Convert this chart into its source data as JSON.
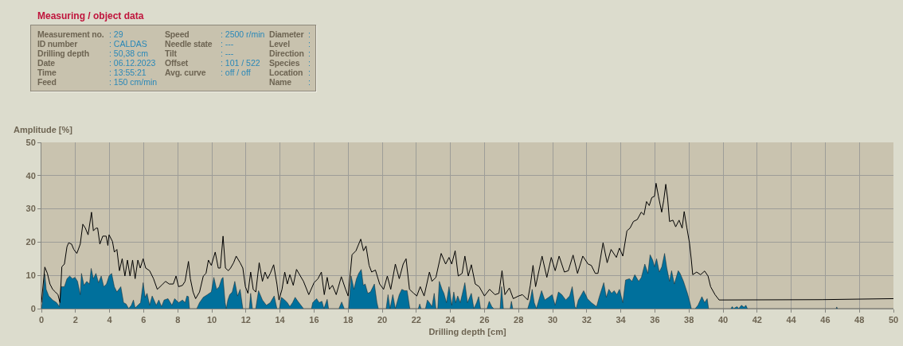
{
  "chart_data": [
    {
      "type": "other",
      "title": "Measuring / object data",
      "annotations": [
        "Measurement no.",
        ": 29",
        "Speed",
        ": 2500 r/min",
        "Diameter",
        ":",
        "ID number",
        ": CALDAS",
        "Needle state",
        ": ---",
        "Level",
        ":",
        "Drilling depth",
        ": 50,38 cm",
        "Tilt",
        ": ---",
        "Direction",
        ":",
        "Date",
        ": 06.12.2023",
        "Offset",
        ": 101 / 522",
        "Species",
        ":",
        "Time",
        ": 13:55:21",
        "Avg. curve",
        ": off / off",
        "Location",
        ":",
        "Feed",
        ": 150 cm/min",
        "Name",
        ":"
      ]
    },
    {
      "type": "line",
      "xlabel": "Drilling depth [cm]",
      "ylabel": "Amplitude [%]",
      "xlim": [
        0,
        50
      ],
      "ylim": [
        0,
        50
      ],
      "xticks": [
        0,
        2,
        4,
        6,
        8,
        10,
        12,
        14,
        16,
        18,
        20,
        22,
        24,
        26,
        28,
        30,
        32,
        34,
        36,
        38,
        40,
        42,
        44,
        46,
        48,
        50
      ],
      "yticks": [
        0,
        10,
        20,
        30,
        40,
        50
      ],
      "grid": true,
      "series": [
        {
          "type": "area",
          "color": "#00709c",
          "x": [
            0,
            0.05,
            0.12,
            0.2,
            0.28,
            0.43,
            0.66,
            0.89,
            1.05,
            1.15,
            1.35,
            1.5,
            1.66,
            1.82,
            1.97,
            2.12,
            2.28,
            2.35,
            2.5,
            2.66,
            2.82,
            2.92,
            3.05,
            3.2,
            3.35,
            3.51,
            3.66,
            3.82,
            3.97,
            4.12,
            4.28,
            4.43,
            4.66,
            4.82,
            4.97,
            5.12,
            5.28,
            5.4,
            5.5,
            5.66,
            5.82,
            5.97,
            6.09,
            6.2,
            6.35,
            6.5,
            6.74,
            6.89,
            7.05,
            7.2,
            7.43,
            7.66,
            7.82,
            8.05,
            8.28,
            8.43,
            8.54,
            8.63,
            8.69,
            9.12,
            9.28,
            9.5,
            9.74,
            9.97,
            10.12,
            10.28,
            10.43,
            10.58,
            10.66,
            10.78,
            10.85,
            10.94,
            11.05,
            11.2,
            11.35,
            11.51,
            11.66,
            11.82,
            12.2,
            12.28,
            12.38,
            12.58,
            12.74,
            12.97,
            13.2,
            13.43,
            13.66,
            13.82,
            13.97,
            14.08,
            14.28,
            14.43,
            14.58,
            14.74,
            14.89,
            15.05,
            15.23,
            15.38,
            15.85,
            15.92,
            16.15,
            16.3,
            16.46,
            16.58,
            16.77,
            16.85,
            17.46,
            17.62,
            17.77,
            18.03,
            18.18,
            18.34,
            18.49,
            18.62,
            18.77,
            18.89,
            19.0,
            19.15,
            19.31,
            19.54,
            19.69,
            19.77,
            20.23,
            20.34,
            20.46,
            20.62,
            20.77,
            21.0,
            21.15,
            21.31,
            21.46,
            21.62,
            22.12,
            22.2,
            22.28,
            22.54,
            22.65,
            22.77,
            22.92,
            23.05,
            23.15,
            23.26,
            23.35,
            23.51,
            23.62,
            23.77,
            23.92,
            24.08,
            24.2,
            24.31,
            24.43,
            24.58,
            24.69,
            24.85,
            25.0,
            25.23,
            25.38,
            25.54,
            25.66,
            25.77,
            26.15,
            26.28,
            26.43,
            26.54,
            26.92,
            27.0,
            27.11,
            27.51,
            27.58,
            27.66,
            28.54,
            28.69,
            28.8,
            28.92,
            29.05,
            29.15,
            29.35,
            29.54,
            29.77,
            29.97,
            30.15,
            30.34,
            30.54,
            30.77,
            31.0,
            31.15,
            31.31,
            31.38,
            31.51,
            31.69,
            31.82,
            31.97,
            32.04,
            32.27,
            32.58,
            32.73,
            33.0,
            33.15,
            33.3,
            33.46,
            33.61,
            33.77,
            33.92,
            34.12,
            34.28,
            34.51,
            34.66,
            34.82,
            35.05,
            35.21,
            35.41,
            35.59,
            35.72,
            35.87,
            35.98,
            36.1,
            36.26,
            36.41,
            36.57,
            36.7,
            36.86,
            36.98,
            37.14,
            37.37,
            37.48,
            37.68,
            37.91,
            38.06,
            38.14,
            38.37,
            38.53,
            38.76,
            38.92,
            39.07,
            39.15,
            40.46,
            40.54,
            40.62,
            40.82,
            40.92,
            41.08,
            41.23,
            41.34,
            41.43,
            46.64,
            46.67,
            46.72,
            50
          ],
          "values": [
            0,
            1.8,
            5.8,
            10.4,
            5.8,
            3.8,
            2.6,
            1.8,
            0.6,
            6.6,
            6.6,
            9.0,
            9.8,
            9.0,
            9.4,
            8.2,
            4.2,
            10.6,
            7.0,
            8.2,
            7.4,
            12.1,
            9.0,
            10.6,
            7.8,
            9.8,
            6.6,
            7.4,
            9.8,
            10.6,
            6.6,
            5.0,
            6.6,
            1.8,
            1.4,
            0,
            1.0,
            2.6,
            0.2,
            1.0,
            1.8,
            7.8,
            3.4,
            4.6,
            1.0,
            3.8,
            1.0,
            2.6,
            0.6,
            2.6,
            3.0,
            1.0,
            3.0,
            1.8,
            2.6,
            1.8,
            3.8,
            3.6,
            0,
            0,
            1.8,
            3.4,
            4.2,
            5.0,
            9.4,
            5.8,
            6.6,
            9.0,
            9.4,
            1.8,
            0,
            2.6,
            4.2,
            5.0,
            8.2,
            3.8,
            5.8,
            0,
            0,
            4.6,
            0,
            0,
            5.4,
            2.6,
            1.0,
            1.8,
            3.8,
            0,
            0,
            3.4,
            2.6,
            1.8,
            0.6,
            1.8,
            3.4,
            2.2,
            1.0,
            0,
            0,
            1.8,
            3.0,
            1.8,
            2.2,
            0,
            2.8,
            0,
            0,
            2.0,
            0,
            0,
            9.8,
            5.8,
            9.0,
            10.6,
            11.8,
            7.0,
            7.4,
            4.6,
            5.0,
            7.4,
            1.8,
            0,
            0,
            4.2,
            0,
            4.2,
            0,
            4.2,
            5.8,
            5.4,
            5.4,
            0,
            0,
            1.4,
            0,
            0,
            2.6,
            1.8,
            0.6,
            4.6,
            0,
            0,
            8.2,
            5.8,
            4.6,
            1.8,
            6.6,
            1.0,
            5.0,
            1.8,
            3.8,
            1.8,
            4.2,
            7.8,
            1.8,
            4.6,
            0,
            1.8,
            3.6,
            0,
            0,
            2.2,
            0.6,
            0,
            0,
            6.6,
            0,
            0,
            2.2,
            0,
            0,
            2.6,
            5.8,
            1.8,
            0,
            1.8,
            5.4,
            2.6,
            3.4,
            4.2,
            1.0,
            5.0,
            4.2,
            2.6,
            3.8,
            6.6,
            0.6,
            0,
            2.6,
            4.2,
            5.4,
            3.8,
            3.0,
            1.8,
            0.6,
            3.4,
            7.8,
            3.4,
            5.8,
            4.6,
            5.4,
            4.2,
            5.8,
            1.8,
            8.6,
            9.0,
            8.2,
            10.2,
            8.2,
            9.4,
            13.4,
            10.6,
            16.2,
            14.6,
            12.6,
            15.0,
            11.0,
            12.6,
            16.6,
            12.2,
            8.2,
            11.4,
            7.4,
            11.4,
            10.6,
            8.2,
            4.6,
            1.8,
            0,
            0,
            1.0,
            3.6,
            1.8,
            3.0,
            0,
            0,
            0.6,
            0,
            0.6,
            0,
            1.0,
            0.4,
            1.0,
            0,
            0,
            0.5,
            0,
            0
          ]
        },
        {
          "type": "line",
          "color": "#000000",
          "x": [
            0,
            0.2,
            0.35,
            0.5,
            0.66,
            0.82,
            0.97,
            1.09,
            1.2,
            1.35,
            1.5,
            1.6,
            1.77,
            1.9,
            2.08,
            2.28,
            2.43,
            2.58,
            2.74,
            2.94,
            3.05,
            3.2,
            3.3,
            3.43,
            3.6,
            3.8,
            3.9,
            3.97,
            4.17,
            4.28,
            4.43,
            4.58,
            4.74,
            4.9,
            5.05,
            5.2,
            5.35,
            5.5,
            5.66,
            5.8,
            5.97,
            6.12,
            6.35,
            6.58,
            6.8,
            7.05,
            7.28,
            7.5,
            7.74,
            7.9,
            8.05,
            8.28,
            8.43,
            8.63,
            8.74,
            8.9,
            9.05,
            9.28,
            9.5,
            9.66,
            9.8,
            9.97,
            10.2,
            10.38,
            10.5,
            10.66,
            10.8,
            10.97,
            11.1,
            11.28,
            11.43,
            11.66,
            11.82,
            11.97,
            12.12,
            12.28,
            12.43,
            12.58,
            12.78,
            12.97,
            13.12,
            13.28,
            13.43,
            13.63,
            13.82,
            13.94,
            14.12,
            14.28,
            14.43,
            14.58,
            14.78,
            14.97,
            15.38,
            15.69,
            16.0,
            16.23,
            16.43,
            16.6,
            16.77,
            16.9,
            17.08,
            17.3,
            17.6,
            17.85,
            18.0,
            18.23,
            18.46,
            18.74,
            18.9,
            19.05,
            19.23,
            19.38,
            19.6,
            19.85,
            20.08,
            20.3,
            20.5,
            20.77,
            21.0,
            21.23,
            21.4,
            21.6,
            21.85,
            22.03,
            22.23,
            22.46,
            22.77,
            22.92,
            23.15,
            23.46,
            23.72,
            23.92,
            24.08,
            24.28,
            24.46,
            24.69,
            24.85,
            25.05,
            25.23,
            25.46,
            25.69,
            26.0,
            26.3,
            26.62,
            26.85,
            27.03,
            27.2,
            27.46,
            27.69,
            28.0,
            28.23,
            28.54,
            28.69,
            28.85,
            29.0,
            29.38,
            29.66,
            29.92,
            30.15,
            30.38,
            30.69,
            30.92,
            31.2,
            31.46,
            31.77,
            32.08,
            32.27,
            32.5,
            32.66,
            32.96,
            33.2,
            33.43,
            33.74,
            33.92,
            34.12,
            34.36,
            34.54,
            34.74,
            34.97,
            35.2,
            35.36,
            35.51,
            35.67,
            35.82,
            35.98,
            36.07,
            36.21,
            36.4,
            36.52,
            36.64,
            36.75,
            36.86,
            37.06,
            37.22,
            37.42,
            37.6,
            37.72,
            37.88,
            38.03,
            38.14,
            38.22,
            38.45,
            38.68,
            38.92,
            39.12,
            39.27,
            39.53,
            39.77,
            45.8,
            50
          ],
          "values": [
            1.8,
            12.5,
            10.6,
            7.4,
            5.8,
            5.0,
            4.2,
            1.8,
            12.6,
            13.4,
            18.6,
            19.8,
            19.4,
            17.8,
            16.6,
            19.4,
            25.4,
            24.2,
            22.2,
            29.0,
            23.4,
            24.2,
            24.2,
            19.4,
            21.8,
            21.8,
            19.0,
            22.2,
            20.2,
            17.0,
            17.8,
            11.4,
            15.0,
            9.8,
            14.6,
            9.8,
            14.6,
            9.0,
            14.6,
            12.2,
            15.0,
            12.2,
            11.4,
            9.0,
            5.8,
            7.0,
            8.2,
            7.4,
            7.4,
            9.8,
            6.6,
            7.0,
            8.2,
            14.2,
            9.0,
            5.0,
            3.0,
            5.0,
            9.8,
            10.6,
            14.6,
            13.0,
            17.0,
            12.2,
            12.2,
            21.8,
            12.2,
            11.4,
            12.2,
            13.8,
            15.8,
            13.8,
            12.2,
            6.6,
            4.6,
            11.0,
            5.8,
            5.0,
            13.8,
            8.2,
            11.0,
            9.0,
            10.6,
            13.2,
            7.4,
            2.6,
            5.8,
            11.0,
            7.4,
            10.2,
            7.0,
            11.8,
            8.2,
            4.2,
            7.8,
            9.0,
            11.0,
            4.2,
            9.4,
            5.8,
            7.0,
            4.2,
            9.6,
            5.8,
            3.8,
            16.2,
            17.4,
            20.9,
            17.4,
            18.8,
            13.0,
            11.0,
            11.6,
            7.4,
            5.8,
            9.8,
            5.8,
            13.4,
            9.0,
            13.4,
            15.0,
            5.8,
            4.6,
            3.8,
            6.6,
            3.8,
            11.0,
            8.2,
            9.4,
            16.6,
            13.4,
            15.4,
            13.4,
            17.4,
            9.8,
            10.6,
            15.8,
            9.8,
            13.2,
            7.4,
            6.6,
            3.8,
            5.8,
            4.2,
            4.6,
            11.4,
            4.2,
            6.2,
            3.0,
            3.8,
            4.2,
            2.6,
            7.0,
            13.0,
            6.6,
            15.8,
            9.4,
            15.4,
            11.4,
            15.8,
            11.0,
            11.4,
            16.1,
            10.6,
            15.8,
            13.4,
            13.0,
            10.6,
            10.6,
            19.8,
            13.8,
            17.8,
            15.4,
            18.2,
            15.8,
            23.4,
            24.2,
            26.2,
            26.8,
            29.0,
            28.2,
            32.2,
            31.0,
            33.4,
            33.8,
            37.7,
            33.8,
            29.0,
            32.6,
            37.4,
            33.0,
            26.2,
            26.6,
            24.6,
            26.6,
            24.2,
            29.2,
            24.2,
            19.8,
            14.6,
            10.2,
            11.0,
            10.2,
            11.3,
            9.8,
            6.6,
            4.2,
            2.6,
            2.7,
            3.0
          ]
        }
      ]
    }
  ]
}
